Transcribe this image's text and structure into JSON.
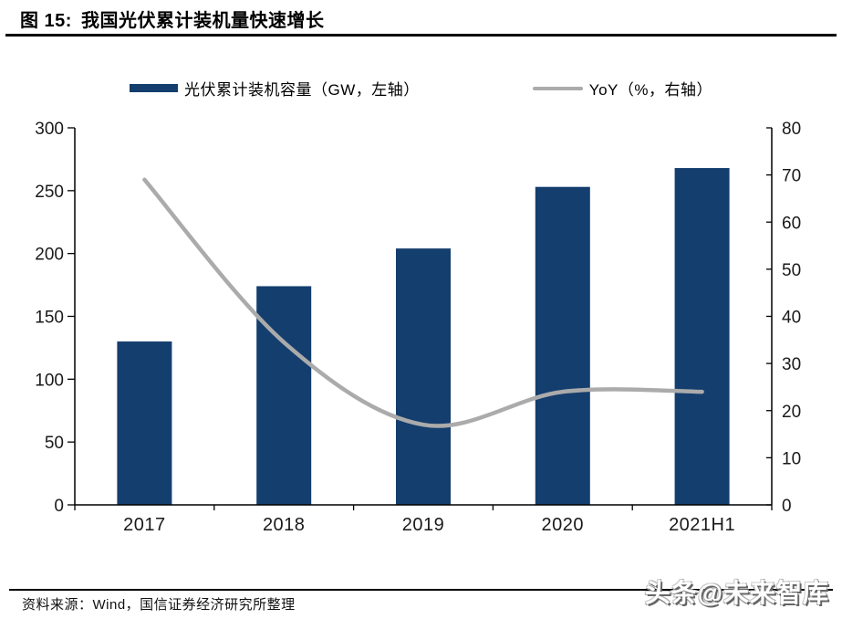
{
  "figure": {
    "label": "图 15:",
    "title": "我国光伏累计装机量快速增长"
  },
  "legend": {
    "bar_label": "光伏累计装机容量（GW，左轴）",
    "line_label": "YoY（%，右轴）"
  },
  "colors": {
    "bar": "#143E6D",
    "line": "#ABABAB",
    "axis": "#000000"
  },
  "chart_data": {
    "type": "bar",
    "subtype": "bar+line combo, dual axis",
    "categories": [
      "2017",
      "2018",
      "2019",
      "2020",
      "2021H1"
    ],
    "series": [
      {
        "name": "光伏累计装机容量（GW，左轴）",
        "type": "bar",
        "axis": "left",
        "color": "#143E6D",
        "values": [
          130,
          174,
          204,
          253,
          268
        ]
      },
      {
        "name": "YoY（%，右轴）",
        "type": "line",
        "axis": "right",
        "color": "#ABABAB",
        "values": [
          69,
          34.5,
          17,
          24,
          24
        ]
      }
    ],
    "title": "我国光伏累计装机量快速增长",
    "xlabel": "",
    "ylabel_left": "GW",
    "ylabel_right": "%",
    "left_axis": {
      "min": 0,
      "max": 300,
      "step": 50,
      "ticks": [
        0,
        50,
        100,
        150,
        200,
        250,
        300
      ]
    },
    "right_axis": {
      "min": 0,
      "max": 80,
      "step": 10,
      "ticks": [
        0,
        10,
        20,
        30,
        40,
        50,
        60,
        70,
        80
      ]
    },
    "grid": false,
    "legend_position": "top"
  },
  "source": {
    "text": "资料来源：Wind，国信证券经济研究所整理"
  },
  "watermark": {
    "text": "头条@未来智库"
  }
}
